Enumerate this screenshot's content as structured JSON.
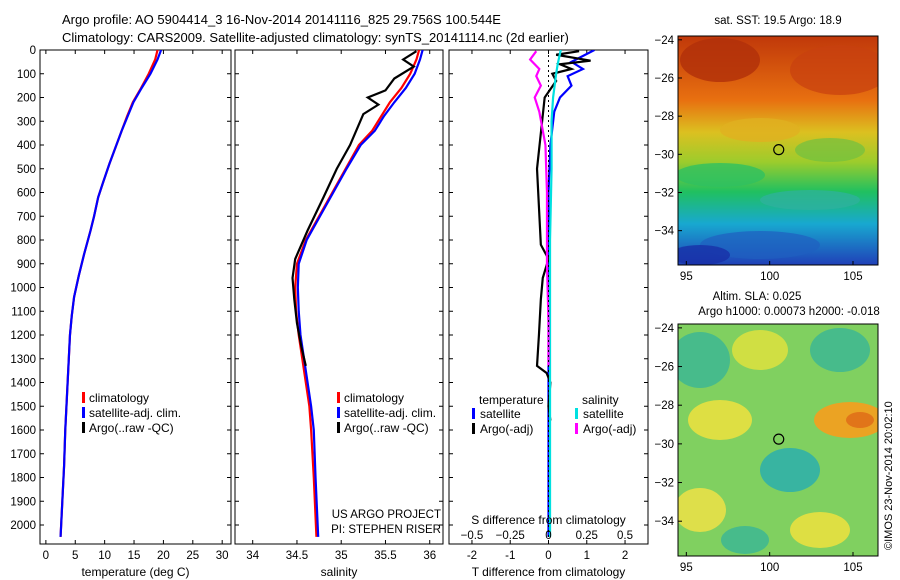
{
  "title": {
    "line1": "Argo profile: AO 5904414_3 16-Nov-2014 20141116_825 29.756S 100.544E",
    "line2": "Climatology: CARS2009. Satellite-adjusted climatology: synTS_20141114.nc (2d earlier)"
  },
  "colors": {
    "climatology": "#ff0000",
    "satellite": "#0000ff",
    "argo": "#000000",
    "sal_satellite": "#00e0e0",
    "sal_argo": "#ff00ff"
  },
  "chart_data": [
    {
      "type": "line",
      "name": "temperature-profile",
      "xlabel": "temperature (deg C)",
      "ylabel": "",
      "xlim": [
        -1,
        31.5
      ],
      "ylim": [
        0,
        2080
      ],
      "yreversed": true,
      "xticks": [
        0,
        5,
        10,
        15,
        20,
        25,
        30
      ],
      "yticks": [
        0,
        100,
        200,
        300,
        400,
        500,
        600,
        700,
        800,
        900,
        1000,
        1100,
        1200,
        1300,
        1400,
        1500,
        1600,
        1700,
        1800,
        1900,
        2000
      ],
      "legend": [
        "climatology",
        "satellite-adj. clim.",
        "Argo(..raw -QC)"
      ],
      "legend_position": "lower-right",
      "series": [
        {
          "name": "climatology",
          "color": "#ff0000",
          "x": [
            19.0,
            18.6,
            17.5,
            16.2,
            14.8,
            13.8,
            12.9,
            12.0,
            10.8,
            9.7,
            8.9,
            8.2,
            7.6,
            6.5,
            5.6,
            4.8,
            4.4,
            4.1,
            3.9,
            3.6,
            3.3,
            3.1,
            2.8,
            2.6,
            2.5
          ],
          "y": [
            0,
            40,
            100,
            160,
            220,
            280,
            340,
            400,
            480,
            560,
            620,
            700,
            760,
            860,
            950,
            1040,
            1120,
            1200,
            1300,
            1450,
            1600,
            1750,
            1900,
            2000,
            2050
          ]
        },
        {
          "name": "satellite-adj. clim.",
          "color": "#0000ff",
          "x": [
            19.6,
            19.0,
            17.8,
            16.3,
            14.9,
            13.9,
            12.9,
            12.0,
            10.8,
            9.7,
            8.9,
            8.2,
            7.6,
            6.5,
            5.6,
            4.8,
            4.4,
            4.1,
            3.9,
            3.6,
            3.3,
            3.1,
            2.8,
            2.6,
            2.5
          ],
          "y": [
            0,
            40,
            100,
            160,
            220,
            280,
            340,
            400,
            480,
            560,
            620,
            700,
            760,
            860,
            950,
            1040,
            1120,
            1200,
            1300,
            1450,
            1600,
            1750,
            1900,
            2000,
            2050
          ]
        }
      ]
    },
    {
      "type": "line",
      "name": "salinity-profile",
      "xlabel": "salinity",
      "xlim": [
        33.8,
        36.15
      ],
      "ylim": [
        0,
        2080
      ],
      "yreversed": true,
      "xticks": [
        34,
        34.5,
        35,
        35.5,
        36
      ],
      "xticklabels": [
        "34",
        "34.5",
        "35",
        "35.5",
        "36"
      ],
      "legend": [
        "climatology",
        "satellite-adj. clim.",
        "Argo(..raw -QC)"
      ],
      "legend_position": "lower-right",
      "annotation": [
        "US ARGO PROJECT",
        "PI: STEPHEN RISER"
      ],
      "series": [
        {
          "name": "climatology",
          "color": "#ff0000",
          "x": [
            35.88,
            35.85,
            35.78,
            35.68,
            35.55,
            35.45,
            35.35,
            35.2,
            35.05,
            34.9,
            34.75,
            34.6,
            34.5,
            34.48,
            34.49,
            34.52,
            34.56,
            34.6,
            34.64,
            34.66,
            34.69,
            34.72
          ],
          "y": [
            0,
            40,
            100,
            160,
            220,
            280,
            340,
            400,
            500,
            600,
            700,
            800,
            900,
            1000,
            1100,
            1200,
            1300,
            1400,
            1500,
            1600,
            1800,
            2050
          ]
        },
        {
          "name": "satellite-adj. clim.",
          "color": "#0000ff",
          "x": [
            35.92,
            35.89,
            35.83,
            35.73,
            35.6,
            35.48,
            35.38,
            35.22,
            35.06,
            34.91,
            34.76,
            34.61,
            34.52,
            34.51,
            34.52,
            34.54,
            34.58,
            34.62,
            34.66,
            34.69,
            34.71,
            34.74
          ],
          "y": [
            0,
            40,
            100,
            160,
            220,
            280,
            340,
            400,
            500,
            600,
            700,
            800,
            900,
            1000,
            1100,
            1200,
            1300,
            1400,
            1500,
            1600,
            1800,
            2050
          ]
        },
        {
          "name": "Argo(..raw -QC)",
          "color": "#000000",
          "x": [
            35.85,
            35.7,
            35.82,
            35.6,
            35.5,
            35.3,
            35.42,
            35.25,
            35.1,
            34.95,
            34.8,
            34.62,
            34.48,
            34.45,
            34.47,
            34.5,
            34.55,
            34.6
          ],
          "y": [
            5,
            40,
            70,
            120,
            170,
            200,
            230,
            270,
            400,
            500,
            620,
            760,
            880,
            960,
            1050,
            1150,
            1250,
            1330
          ]
        }
      ]
    },
    {
      "type": "line",
      "name": "difference-profile",
      "xlabel": "T difference from climatology",
      "xlabel_top": "S difference from climatology",
      "xlim": [
        -2.6,
        2.6
      ],
      "ylim": [
        0,
        2080
      ],
      "yreversed": true,
      "xticks": [
        -2,
        -1,
        0,
        1,
        2
      ],
      "sticks": [
        -0.5,
        -0.25,
        0,
        0.25,
        0.5
      ],
      "legend_temperature": {
        "title": "temperature",
        "items": [
          "satellite",
          "Argo(-adj)"
        ]
      },
      "legend_salinity": {
        "title": "salinity",
        "items": [
          "satellite",
          "Argo(-adj)"
        ]
      },
      "legend_position": "lower-center",
      "series": [
        {
          "name": "temperature satellite",
          "color": "#0000ff",
          "x": [
            1.2,
            0.6,
            0.9,
            0.5,
            0.6,
            0.3,
            0.15,
            0.05,
            0.0,
            0.0,
            0.0,
            0.0,
            0.0
          ],
          "y": [
            0,
            50,
            80,
            110,
            150,
            200,
            260,
            400,
            600,
            900,
            1200,
            1600,
            2050
          ]
        },
        {
          "name": "temperature Argo(-adj)",
          "color": "#000000",
          "x": [
            0.8,
            0.2,
            1.1,
            0.3,
            0.6,
            0.1,
            0.2,
            -0.1,
            -0.3,
            -0.2,
            0.0,
            -0.15,
            -0.2,
            -0.25,
            -0.3,
            -0.05,
            0.05,
            0.0,
            0.05
          ],
          "y": [
            5,
            20,
            45,
            60,
            80,
            100,
            130,
            200,
            500,
            820,
            880,
            960,
            1050,
            1200,
            1330,
            1360,
            1400,
            1500,
            1560
          ]
        },
        {
          "name": "salinity satellite",
          "color": "#00e0e0",
          "x": [
            0.08,
            0.06,
            0.05,
            0.04,
            0.03,
            0.02,
            0.02,
            0.01,
            0.01,
            0.01,
            0.01,
            0.01
          ],
          "y": [
            0,
            60,
            100,
            150,
            200,
            300,
            500,
            800,
            1100,
            1400,
            1800,
            2050
          ]
        },
        {
          "name": "salinity Argo(-adj)",
          "color": "#ff00ff",
          "x": [
            -0.08,
            -0.12,
            -0.06,
            -0.08,
            -0.05,
            -0.09,
            -0.06,
            -0.02,
            -0.01,
            -0.01,
            0.0,
            0.0
          ],
          "y": [
            5,
            40,
            80,
            110,
            150,
            200,
            260,
            400,
            600,
            900,
            1150,
            1330
          ]
        }
      ]
    },
    {
      "type": "heatmap",
      "name": "sst-map",
      "title": "sat. SST: 19.5 Argo: 18.9",
      "xlim": [
        94.5,
        106.5
      ],
      "ylim": [
        -35.8,
        -23.8
      ],
      "xticks": [
        95,
        100,
        105
      ],
      "yticks": [
        -24,
        -26,
        -28,
        -30,
        -32,
        -34
      ],
      "marker": {
        "lon": 100.544,
        "lat": -29.756
      }
    },
    {
      "type": "heatmap",
      "name": "sla-map",
      "title": "Altim. SLA: 0.025",
      "subtitle": "Argo h1000: 0.00073 h2000: -0.018",
      "side_label": "©IMOS 23-Nov-2014 20:02:10",
      "xlim": [
        94.5,
        106.5
      ],
      "ylim": [
        -35.8,
        -23.8
      ],
      "xticks": [
        95,
        100,
        105
      ],
      "yticks": [
        -24,
        -26,
        -28,
        -30,
        -32,
        -34
      ],
      "marker": {
        "lon": 100.544,
        "lat": -29.756
      }
    }
  ]
}
